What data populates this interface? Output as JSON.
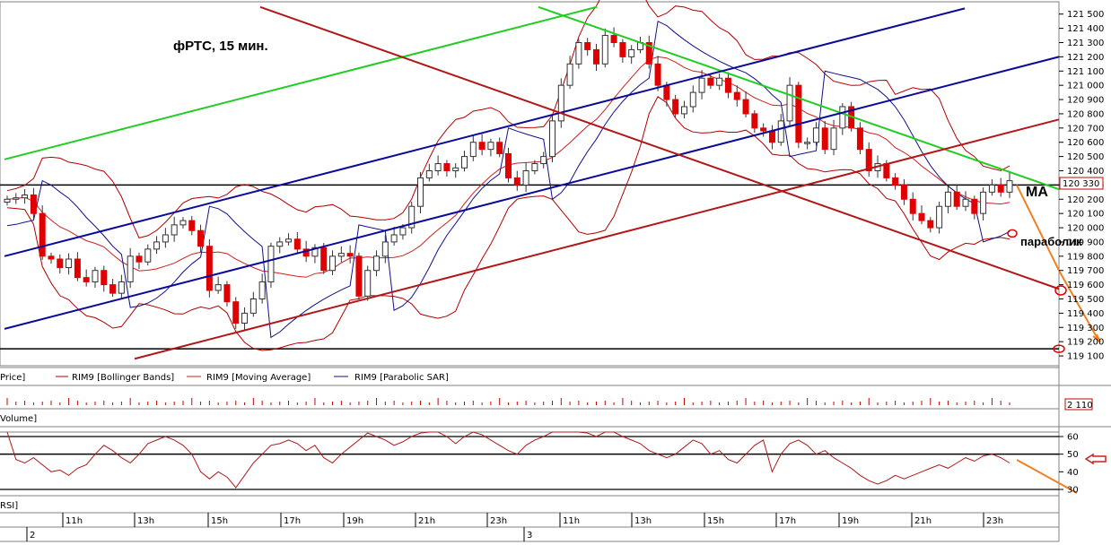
{
  "title": "фРТС,  15 мин.",
  "annotations": {
    "ma": "MA",
    "parabolic": "параболик"
  },
  "legend": {
    "price": "Price]",
    "bollinger": "RIM9 [Bollinger Bands]",
    "moving_average": "RIM9 [Moving Average]",
    "parabolic": "RIM9 [Parabolic SAR]"
  },
  "volume_label": "Volume]",
  "volume_value": "2 110",
  "rsi_label": "RSI]",
  "last_price_label": "120 330",
  "rsi_level_marker": "50",
  "colors": {
    "bull": "#ffffff",
    "bear": "#e00000",
    "bollinger": "#b00000",
    "ma": "#cc2020",
    "sar": "#10108c",
    "blue_channel": "#0a0a9a",
    "green_line": "#22cc22",
    "red_line": "#b01818",
    "forecast": "#f08020"
  },
  "chart_data": [
    {
      "type": "candlestick",
      "title": "фРТС,  15 мин.",
      "ylim": [
        119050,
        121580
      ],
      "y_ticks": [
        119100,
        119200,
        119300,
        119400,
        119500,
        119600,
        119700,
        119800,
        119900,
        120000,
        120100,
        120200,
        120300,
        120400,
        120500,
        120600,
        120700,
        120800,
        120900,
        121000,
        121100,
        121200,
        121300,
        121400,
        121500
      ],
      "y_tick_labels": [
        "119 100",
        "119 200",
        "119 300",
        "119 400",
        "119 500",
        "119 600",
        "119 700",
        "119 800",
        "119 900",
        "120 000",
        "120 100",
        "120 200",
        "120 300",
        "120 400",
        "120 500",
        "120 600",
        "120 700",
        "120 800",
        "120 900",
        "121 000",
        "121 100",
        "121 200",
        "121 300",
        "121 400",
        "121 500"
      ],
      "x_tick_labels": [
        "11h",
        "13h",
        "15h",
        "17h",
        "19h",
        "21h",
        "23h",
        "11h",
        "13h",
        "15h",
        "17h",
        "19h",
        "21h",
        "23h"
      ],
      "date_labels": [
        "2",
        "3"
      ],
      "horizontal_levels": [
        120300,
        119150
      ],
      "close_series": [
        120200,
        120210,
        120230,
        120100,
        119800,
        119780,
        119720,
        119780,
        119650,
        119620,
        119700,
        119600,
        119540,
        119620,
        119800,
        119760,
        119850,
        119900,
        119950,
        120020,
        120050,
        119980,
        119870,
        119560,
        119600,
        119480,
        119330,
        119400,
        119500,
        119620,
        119870,
        119900,
        119920,
        119850,
        119800,
        119860,
        119700,
        119800,
        119820,
        119800,
        119520,
        119700,
        119800,
        119900,
        119950,
        120000,
        120150,
        120350,
        120400,
        120450,
        120400,
        120420,
        120500,
        120600,
        120550,
        120600,
        120520,
        120350,
        120300,
        120400,
        120450,
        120500,
        120750,
        121000,
        121150,
        121300,
        121250,
        121150,
        121350,
        121300,
        121200,
        121250,
        121300,
        121150,
        121000,
        120900,
        120800,
        120850,
        120950,
        121050,
        121000,
        121050,
        120950,
        120900,
        120800,
        120700,
        120680,
        120600,
        120750,
        121000,
        120600,
        120600,
        120700,
        120550,
        120700,
        120850,
        120700,
        120550,
        120400,
        120450,
        120350,
        120300,
        120200,
        120100,
        120050,
        120000,
        120150,
        120250,
        120150,
        120200,
        120100,
        120250,
        120300,
        120250,
        120330
      ]
    },
    {
      "type": "bar",
      "title": "Volume",
      "last_value": 2110
    },
    {
      "type": "line",
      "title": "RSI",
      "ylim": [
        30,
        60
      ],
      "y_ticks": [
        30,
        40,
        50,
        60
      ],
      "levels": [
        30,
        50,
        60
      ],
      "values": [
        64,
        47,
        45,
        48,
        44,
        40,
        41,
        38,
        42,
        44,
        50,
        55,
        52,
        48,
        45,
        50,
        56,
        58,
        60,
        58,
        55,
        50,
        40,
        36,
        40,
        37,
        31,
        38,
        45,
        50,
        55,
        56,
        58,
        56,
        52,
        55,
        48,
        45,
        50,
        54,
        58,
        62,
        60,
        58,
        55,
        57,
        60,
        62,
        64,
        63,
        60,
        56,
        60,
        63,
        61,
        58,
        55,
        52,
        50,
        55,
        58,
        60,
        63,
        65,
        66,
        64,
        62,
        60,
        66,
        65,
        60,
        58,
        56,
        52,
        50,
        48,
        50,
        54,
        58,
        56,
        50,
        52,
        47,
        45,
        50,
        55,
        58,
        40,
        50,
        56,
        58,
        55,
        50,
        52,
        48,
        45,
        42,
        38,
        35,
        33,
        35,
        38,
        36,
        38,
        40,
        42,
        44,
        42,
        45,
        48,
        46,
        49,
        50,
        48,
        45
      ]
    }
  ]
}
